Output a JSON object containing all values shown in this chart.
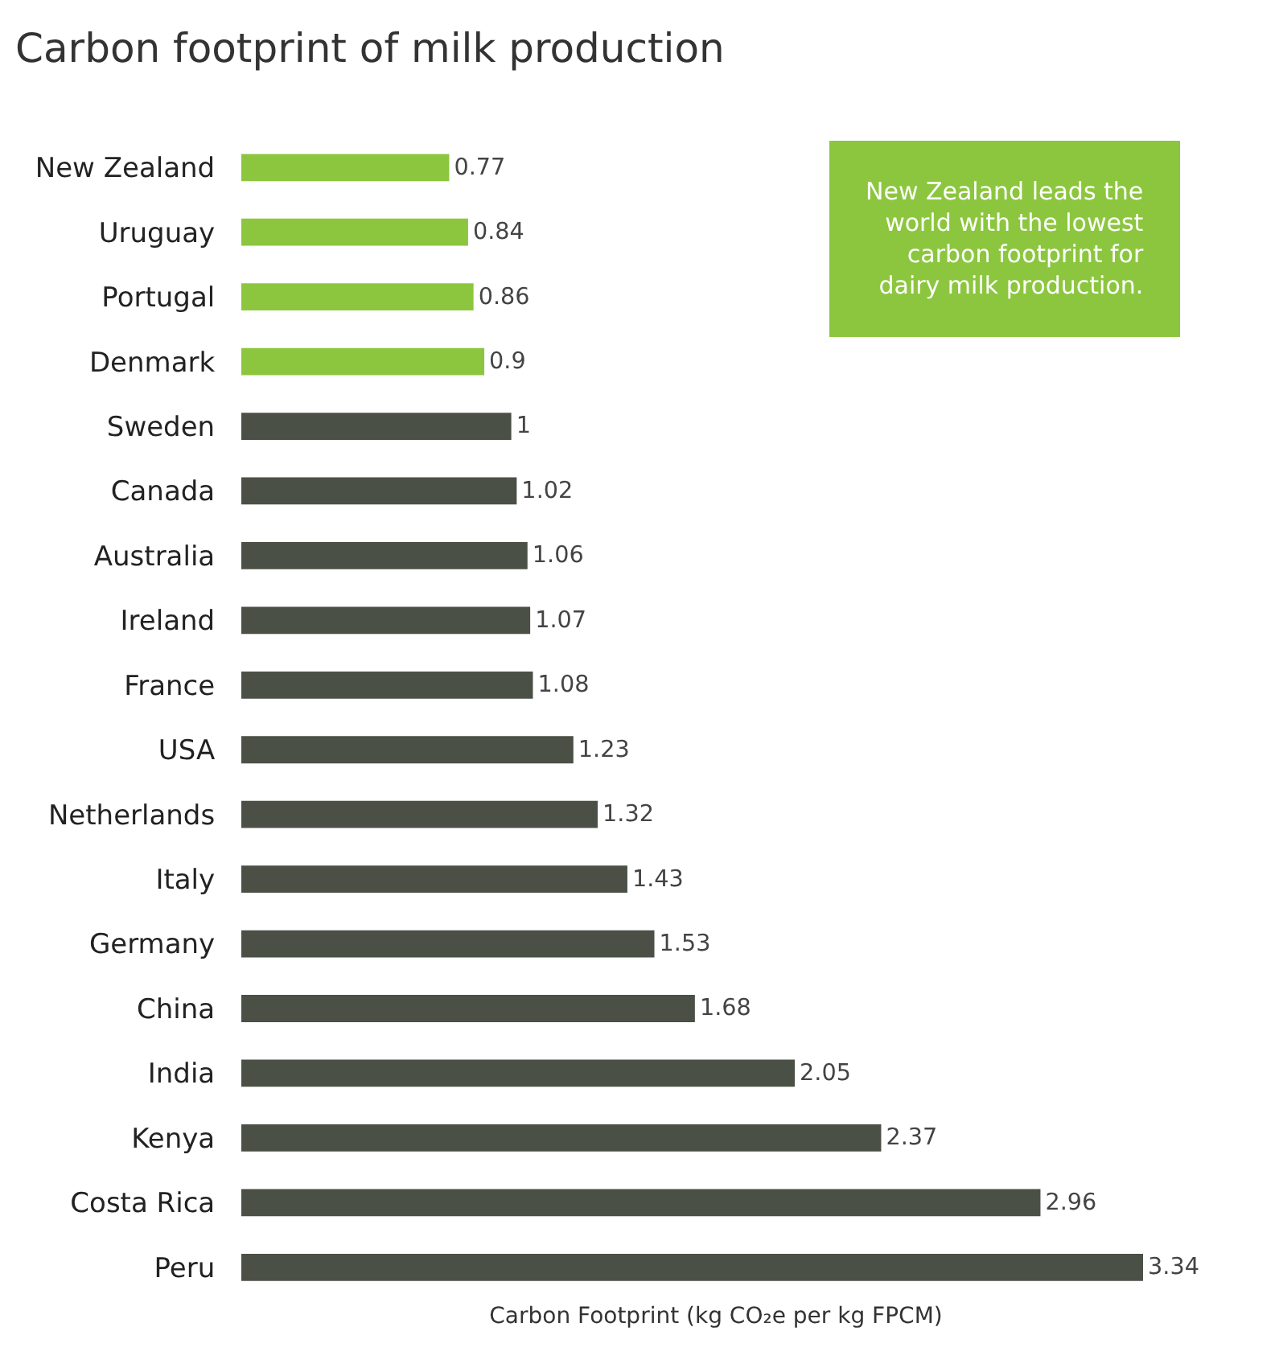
{
  "chart_data": {
    "type": "bar",
    "orientation": "horizontal",
    "title": "Carbon footprint of milk production",
    "xlabel": "Carbon Footprint (kg CO₂e per kg FPCM)",
    "categories": [
      "New Zealand",
      "Uruguay",
      "Portugal",
      "Denmark",
      "Sweden",
      "Canada",
      "Australia",
      "Ireland",
      "France",
      "USA",
      "Netherlands",
      "Italy",
      "Germany",
      "China",
      "India",
      "Kenya",
      "Costa Rica",
      "Peru"
    ],
    "values": [
      0.77,
      0.84,
      0.86,
      0.9,
      1,
      1.02,
      1.06,
      1.07,
      1.08,
      1.23,
      1.32,
      1.43,
      1.53,
      1.68,
      2.05,
      2.37,
      2.96,
      3.34
    ],
    "colors": [
      "#8cc63f",
      "#8cc63f",
      "#8cc63f",
      "#8cc63f",
      "#4a5046",
      "#4a5046",
      "#4a5046",
      "#4a5046",
      "#4a5046",
      "#4a5046",
      "#4a5046",
      "#4a5046",
      "#4a5046",
      "#4a5046",
      "#4a5046",
      "#4a5046",
      "#4a5046",
      "#4a5046"
    ],
    "data_labels": true,
    "tick_labels": "y",
    "legend": false,
    "annotations": [
      "New Zealand leads the world with the lowest carbon footprint for dairy milk production."
    ]
  }
}
